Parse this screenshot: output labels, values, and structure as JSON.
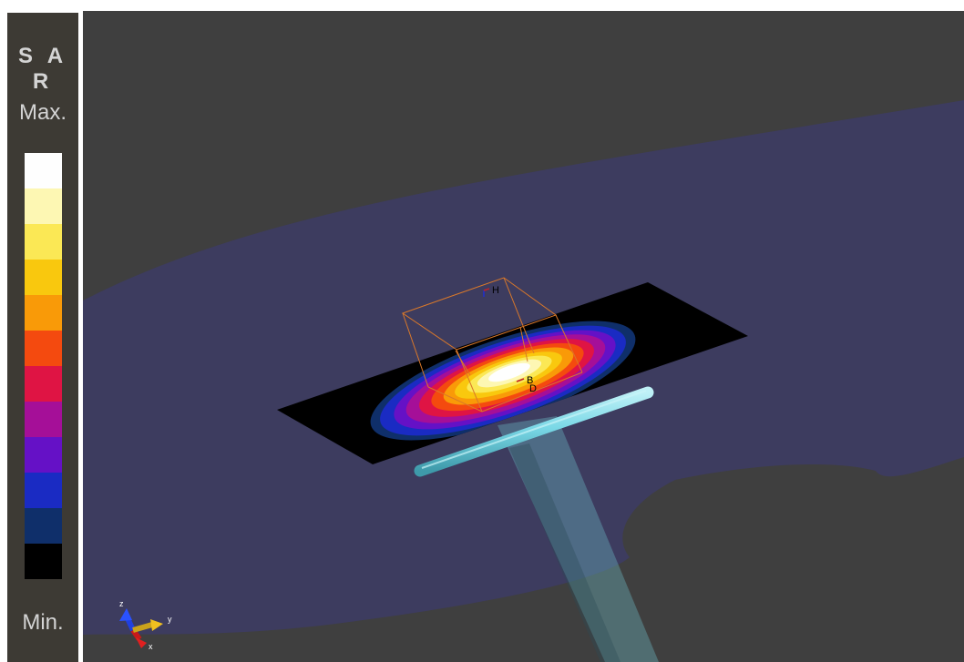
{
  "legend": {
    "title": "S A R",
    "max_label": "Max.",
    "min_label": "Min.",
    "colors": [
      "#fefefe",
      "#fdf7b3",
      "#fbe855",
      "#f9c80e",
      "#f99a08",
      "#f44a0f",
      "#df1444",
      "#a50f98",
      "#6511c6",
      "#1a2bc3",
      "#0f2f6a",
      "#000000"
    ]
  },
  "scene": {
    "background_color": "#3f3f3f",
    "phantom_color": "#3d3c5f",
    "slab_color": "#000000",
    "dipole_color": "#7ad8e6",
    "box_color": "#d9782a",
    "markers": [
      "H",
      "B",
      "D"
    ]
  },
  "axes": {
    "y_label": "y",
    "x_label": "x",
    "z_label": "z"
  }
}
